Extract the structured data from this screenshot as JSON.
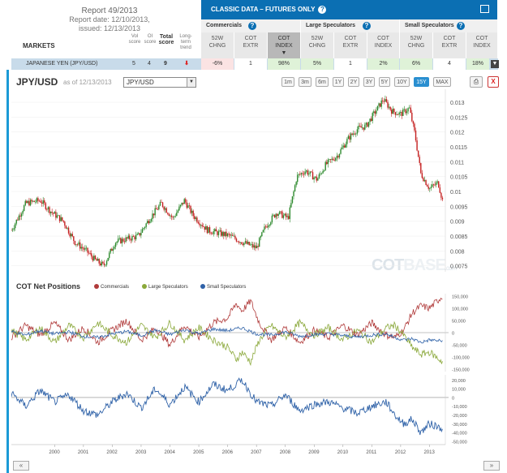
{
  "report": {
    "title": "Report 49/2013",
    "date": "Report date: 12/10/2013,",
    "issued": "issued: 12/13/2013"
  },
  "markets_label": "MARKETS",
  "scores": {
    "vol": "Vol score",
    "oi": "OI score",
    "total": "Total score",
    "trend": "Long-term trend"
  },
  "classic": {
    "title": "CLASSIC DATA – FUTURES ONLY"
  },
  "groups": {
    "commercials": "Commercials",
    "large": "Large Speculators",
    "small": "Small Speculators"
  },
  "col_headers": [
    {
      "l1": "52W",
      "l2": "CHNG"
    },
    {
      "l1": "COT",
      "l2": "EXTR"
    },
    {
      "l1": "COT",
      "l2": "INDEX"
    },
    {
      "l1": "52W",
      "l2": "CHNG"
    },
    {
      "l1": "COT",
      "l2": "EXTR"
    },
    {
      "l1": "COT",
      "l2": "INDEX"
    },
    {
      "l1": "52W",
      "l2": "CHNG"
    },
    {
      "l1": "COT",
      "l2": "EXTR"
    },
    {
      "l1": "COT",
      "l2": "INDEX"
    }
  ],
  "market_row": {
    "name": "JAPANESE YEN   (JPY/USD)",
    "vol": "5",
    "oi": "4",
    "total": "9",
    "trend_icon": "arrow-down-icon",
    "cells": [
      "-6%",
      "1",
      "98%",
      "5%",
      "1",
      "2%",
      "6%",
      "4",
      "18%"
    ]
  },
  "chart_header": {
    "pair": "JPY/USD",
    "asof": "as of 12/13/2013",
    "select_value": "JPY/USD"
  },
  "ranges": [
    "1m",
    "3m",
    "6m",
    "1Y",
    "2Y",
    "3Y",
    "5Y",
    "10Y",
    "15Y",
    "MAX"
  ],
  "active_range": "15Y",
  "cot_title": "COT Net Positions",
  "legend": [
    {
      "name": "Commercials",
      "color": "#b03a3a"
    },
    {
      "name": "Large Speculators",
      "color": "#8aa83a"
    },
    {
      "name": "Small Speculators",
      "color": "#2f62a8"
    }
  ],
  "watermark": {
    "main": "COT",
    "light": "BASE",
    "small": ".com"
  },
  "chart_data": [
    {
      "type": "line",
      "title": "JPY/USD",
      "x_ticks": [
        "2000",
        "2001",
        "2002",
        "2003",
        "2004",
        "2005",
        "2006",
        "2007",
        "2008",
        "2009",
        "2010",
        "2011",
        "2012",
        "2013"
      ],
      "y_ticks": [
        "0.013",
        "0.0125",
        "0.012",
        "0.0115",
        "0.011",
        "0.0105",
        "0.01",
        "0.0095",
        "0.009",
        "0.0085",
        "0.008",
        "0.0075"
      ],
      "ylim": [
        0.0073,
        0.0133
      ],
      "series": [
        {
          "x": [
            1999.0,
            1999.5,
            2000.0,
            2000.4,
            2000.8,
            2001.2,
            2001.6,
            2001.9,
            2002.2,
            2002.6,
            2003.0,
            2003.4,
            2003.8,
            2004.2,
            2004.6,
            2005.0,
            2005.3,
            2005.8,
            2006.2,
            2006.6,
            2007.0,
            2007.5,
            2007.8,
            2008.2,
            2008.6,
            2008.9,
            2009.2,
            2009.6,
            2009.9,
            2010.3,
            2010.7,
            2011.0,
            2011.3,
            2011.7,
            2011.9,
            2012.2,
            2012.5,
            2012.8,
            2013.0,
            2013.2,
            2013.5,
            2013.8,
            2013.95
          ],
          "y": [
            0.0087,
            0.0096,
            0.0097,
            0.0093,
            0.009,
            0.0083,
            0.008,
            0.0077,
            0.0075,
            0.0083,
            0.0084,
            0.0085,
            0.0091,
            0.0096,
            0.0091,
            0.0097,
            0.0092,
            0.0087,
            0.0086,
            0.0085,
            0.0083,
            0.0081,
            0.0088,
            0.0093,
            0.0091,
            0.0105,
            0.0107,
            0.0104,
            0.0109,
            0.0112,
            0.0118,
            0.0121,
            0.0122,
            0.0128,
            0.0131,
            0.0127,
            0.0126,
            0.0128,
            0.0119,
            0.0106,
            0.0101,
            0.0103,
            0.0097
          ]
        }
      ]
    },
    {
      "type": "line",
      "title": "COT Net Positions",
      "x_ticks": [
        "2000",
        "2001",
        "2002",
        "2003",
        "2004",
        "2005",
        "2006",
        "2007",
        "2008",
        "2009",
        "2010",
        "2011",
        "2012",
        "2013"
      ],
      "y_ticks": [
        "150,000",
        "100,000",
        "50,000",
        "0",
        "-50,000",
        "-100,000",
        "-150,000"
      ],
      "ylim": [
        -160000,
        160000
      ],
      "series": [
        {
          "name": "Commercials",
          "x": [
            1999.0,
            1999.5,
            2000.0,
            2000.5,
            2001.0,
            2001.5,
            2002.0,
            2002.5,
            2003.0,
            2003.5,
            2004.0,
            2004.5,
            2005.0,
            2005.5,
            2006.0,
            2006.5,
            2006.8,
            2007.0,
            2007.3,
            2007.6,
            2008.0,
            2008.5,
            2009.0,
            2009.5,
            2010.0,
            2010.5,
            2011.0,
            2011.5,
            2012.0,
            2012.3,
            2012.6,
            2012.9,
            2013.2,
            2013.5,
            2013.95
          ],
          "y": [
            -20000,
            30000,
            -10000,
            40000,
            -30000,
            20000,
            -40000,
            10000,
            50000,
            -30000,
            20000,
            -50000,
            30000,
            -20000,
            40000,
            60000,
            120000,
            90000,
            130000,
            40000,
            -30000,
            20000,
            -40000,
            10000,
            -20000,
            30000,
            -10000,
            40000,
            -10000,
            -20000,
            10000,
            80000,
            110000,
            100000,
            150000
          ]
        },
        {
          "name": "Large Speculators",
          "x": [
            1999.0,
            1999.5,
            2000.0,
            2000.5,
            2001.0,
            2001.5,
            2002.0,
            2002.5,
            2003.0,
            2003.5,
            2004.0,
            2004.5,
            2005.0,
            2005.5,
            2006.0,
            2006.5,
            2006.8,
            2007.0,
            2007.3,
            2007.6,
            2008.0,
            2008.5,
            2009.0,
            2009.5,
            2010.0,
            2010.5,
            2011.0,
            2011.5,
            2012.0,
            2012.3,
            2012.6,
            2012.9,
            2013.2,
            2013.5,
            2013.95
          ],
          "y": [
            10000,
            -30000,
            20000,
            -40000,
            30000,
            -20000,
            40000,
            -10000,
            -40000,
            30000,
            -20000,
            40000,
            -30000,
            20000,
            -30000,
            -60000,
            -110000,
            -80000,
            -120000,
            -30000,
            30000,
            -20000,
            40000,
            -10000,
            20000,
            -30000,
            10000,
            -40000,
            20000,
            30000,
            -10000,
            -60000,
            -90000,
            -80000,
            -120000
          ]
        },
        {
          "name": "Small Speculators",
          "x": [
            1999.0,
            1999.5,
            2000.0,
            2000.5,
            2001.0,
            2001.5,
            2002.0,
            2002.5,
            2003.0,
            2003.5,
            2004.0,
            2004.5,
            2005.0,
            2005.5,
            2006.0,
            2006.5,
            2007.0,
            2007.5,
            2008.0,
            2008.5,
            2009.0,
            2009.5,
            2010.0,
            2010.5,
            2011.0,
            2011.5,
            2012.0,
            2012.3,
            2012.6,
            2012.9,
            2013.2,
            2013.5,
            2013.95
          ],
          "y": [
            5000,
            -10000,
            8000,
            -5000,
            3000,
            -15000,
            -20000,
            -5000,
            5000,
            -12000,
            10000,
            -8000,
            12000,
            -5000,
            15000,
            8000,
            20000,
            -5000,
            -10000,
            3000,
            -15000,
            -8000,
            -5000,
            -12000,
            -18000,
            -10000,
            -5000,
            -20000,
            -30000,
            -25000,
            -40000,
            -30000,
            -35000
          ]
        }
      ]
    },
    {
      "type": "line",
      "title": "Small Speculators",
      "y_ticks": [
        "20,000",
        "10,000",
        "0",
        "-10,000",
        "-20,000",
        "-30,000",
        "-40,000",
        "-50,000"
      ],
      "ylim": [
        -52000,
        24000
      ]
    }
  ]
}
